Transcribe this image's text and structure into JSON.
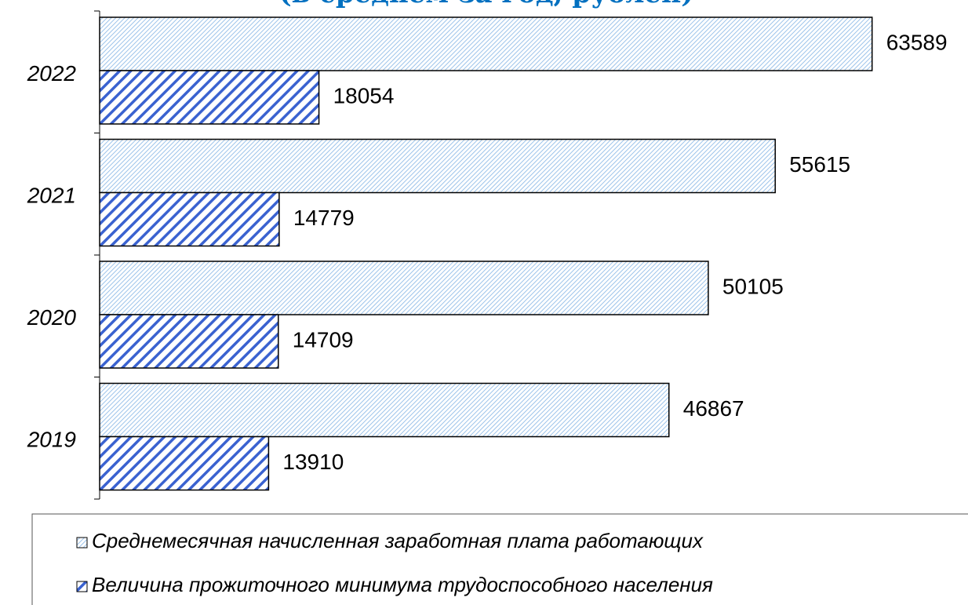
{
  "chart_data": {
    "type": "bar",
    "orientation": "horizontal",
    "title": "(в среднем за год, рублей)",
    "categories": [
      "2022",
      "2021",
      "2020",
      "2019"
    ],
    "series": [
      {
        "name": "Среднемесячная начисленная заработная плата работающих",
        "color": "#9cc3ea",
        "values": [
          63589,
          55615,
          50105,
          46867
        ]
      },
      {
        "name": "Величина прожиточного минимума трудоспособного населения",
        "color": "#3a62d0",
        "values": [
          18054,
          14779,
          14709,
          13910
        ]
      }
    ],
    "xlim": [
      0,
      70000
    ]
  }
}
